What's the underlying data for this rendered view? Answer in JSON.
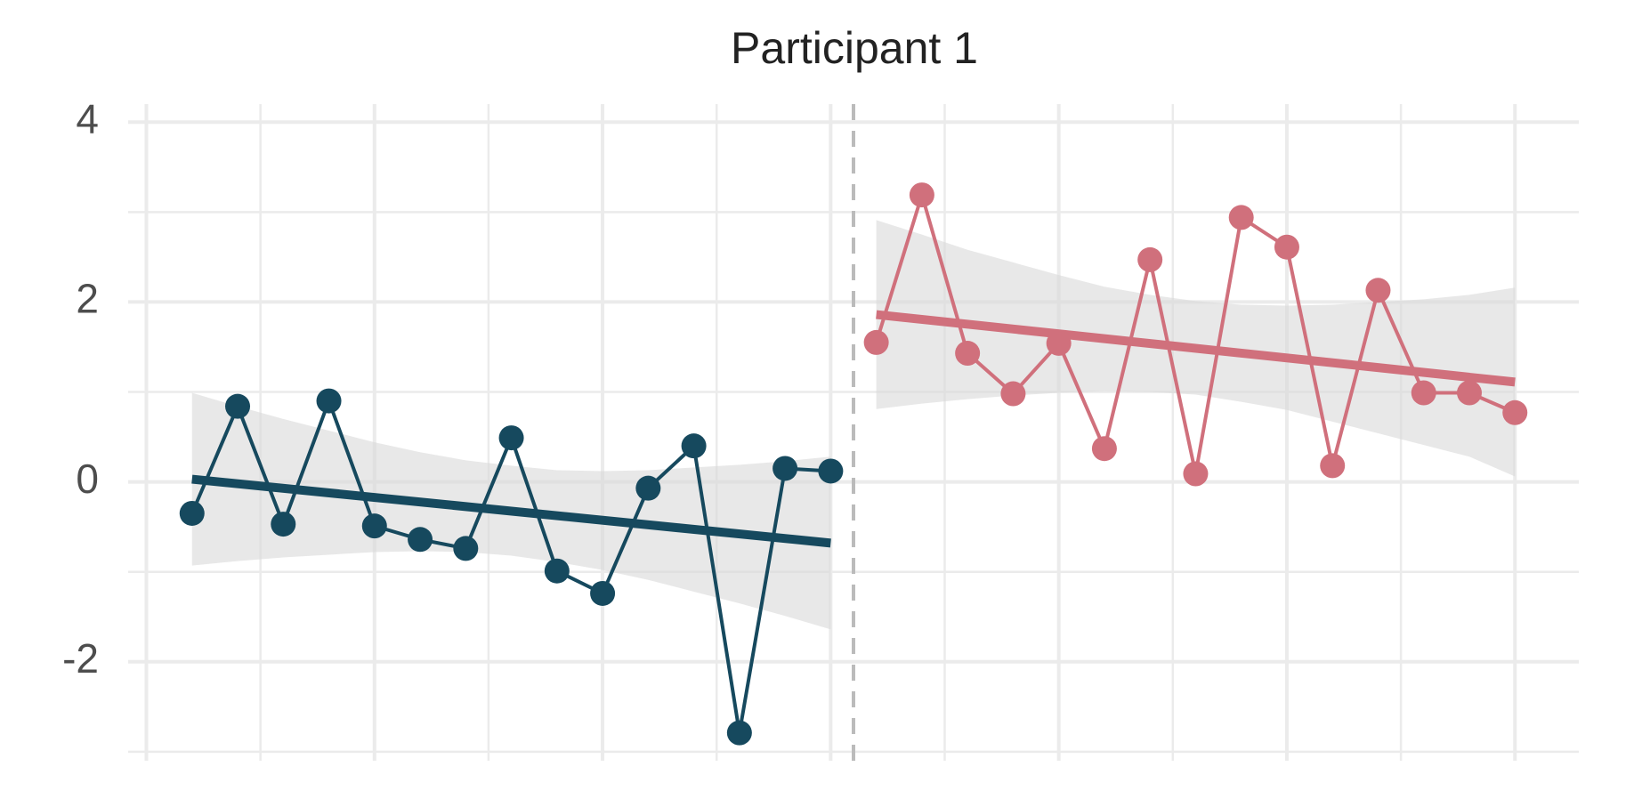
{
  "chart_data": {
    "type": "line",
    "title": "Participant 1",
    "series": [
      {
        "color": "#16495e",
        "x": [
          1,
          2,
          3,
          4,
          5,
          6,
          7,
          8,
          9,
          10,
          11,
          12,
          13,
          14,
          15
        ],
        "values": [
          -0.35,
          0.84,
          -0.47,
          0.9,
          -0.49,
          -0.64,
          -0.74,
          0.49,
          -0.99,
          -1.24,
          -0.07,
          0.4,
          -2.79,
          0.15,
          0.12
        ],
        "trend": [
          0.03,
          -0.68
        ],
        "band_lower": [
          -0.93,
          -0.88,
          -0.84,
          -0.81,
          -0.78,
          -0.77,
          -0.78,
          -0.82,
          -0.89,
          -0.98,
          -1.09,
          -1.22,
          -1.35,
          -1.49,
          -1.64
        ],
        "band_upper": [
          0.99,
          0.84,
          0.7,
          0.57,
          0.44,
          0.33,
          0.24,
          0.18,
          0.13,
          0.12,
          0.13,
          0.16,
          0.19,
          0.23,
          0.28
        ]
      },
      {
        "color": "#d0707c",
        "x": [
          16,
          17,
          18,
          19,
          20,
          21,
          22,
          23,
          24,
          25,
          26,
          27,
          28,
          29,
          30
        ],
        "values": [
          1.55,
          3.19,
          1.43,
          0.98,
          1.54,
          0.37,
          2.47,
          0.09,
          2.94,
          2.61,
          0.18,
          2.13,
          0.99,
          0.99,
          0.77
        ],
        "trend": [
          1.86,
          1.11
        ],
        "band_lower": [
          0.81,
          0.87,
          0.92,
          0.96,
          0.99,
          1.01,
          1.0,
          0.97,
          0.89,
          0.8,
          0.67,
          0.54,
          0.41,
          0.28,
          0.06
        ],
        "band_upper": [
          2.91,
          2.75,
          2.58,
          2.44,
          2.3,
          2.17,
          2.08,
          2.01,
          1.97,
          1.96,
          1.97,
          2.0,
          2.03,
          2.08,
          2.16
        ]
      }
    ],
    "band_color": "#d9d9d9",
    "phase_change": 15.5,
    "xlim": [
      -0.4,
      31.4
    ],
    "xticks": [
      0,
      5,
      10,
      15,
      20,
      25,
      30
    ],
    "xminor": [
      2.5,
      7.5,
      12.5,
      17.5,
      22.5,
      27.5
    ],
    "ylim": [
      -3.1,
      4.2
    ],
    "yticks": [
      -2,
      0,
      2,
      4
    ],
    "yminor": [
      -3,
      -1,
      1,
      3
    ],
    "grid": true
  }
}
